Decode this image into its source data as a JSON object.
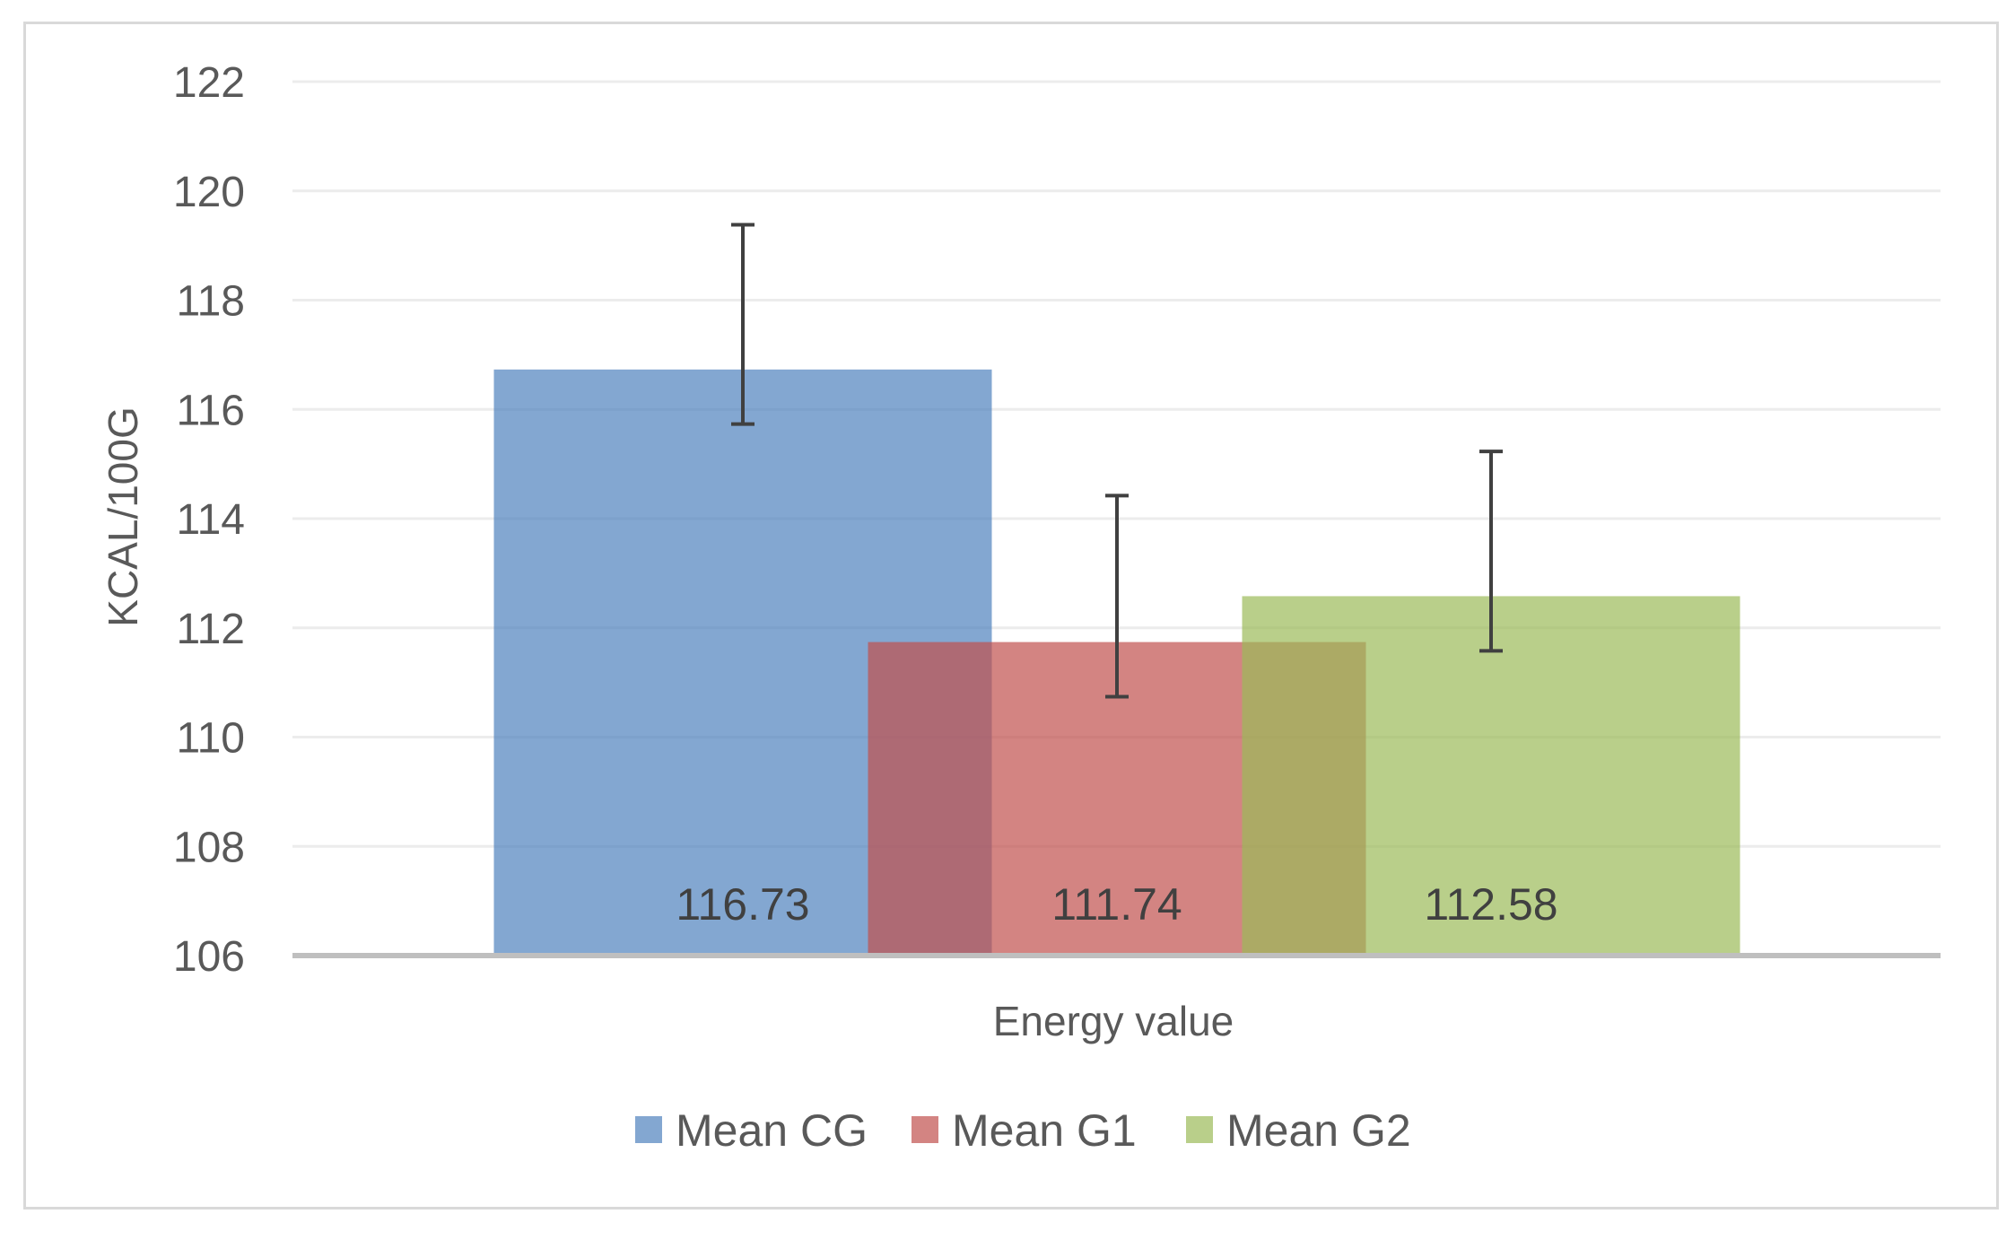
{
  "chart_data": {
    "type": "bar",
    "title": "",
    "xlabel": "Energy value",
    "ylabel": "KCAL/100G",
    "categories": [
      "Energy value"
    ],
    "ylim": [
      106,
      122
    ],
    "yticks": [
      106,
      108,
      110,
      112,
      114,
      116,
      118,
      120,
      122
    ],
    "grid": true,
    "legend_position": "bottom",
    "series": [
      {
        "name": "Mean CG",
        "values": [
          116.73
        ],
        "error_low": [
          115.73
        ],
        "error_high": [
          119.38
        ],
        "color": "#4f81bd",
        "label": "116.73"
      },
      {
        "name": "Mean G1",
        "values": [
          111.74
        ],
        "error_low": [
          110.74
        ],
        "error_high": [
          114.42
        ],
        "color": "#c0504d",
        "label": "111.74"
      },
      {
        "name": "Mean G2",
        "values": [
          112.58
        ],
        "error_low": [
          111.58
        ],
        "error_high": [
          115.23
        ],
        "color": "#9bbb59",
        "label": "112.58"
      }
    ],
    "bar_opacity": 0.7,
    "error_bar_color": "#404040",
    "gridline_color": "#ececec",
    "axis_color": "#bfbfbf",
    "text_color": "#595959"
  }
}
